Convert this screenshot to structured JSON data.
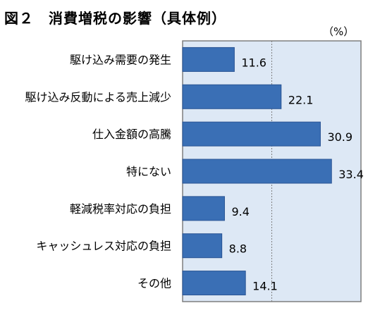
{
  "title": "図２　消費増税の影響（具体例）",
  "unit": "（%）",
  "colors": {
    "bar": "#3a6fb5",
    "bar_edge": "#2a5494",
    "plot_bg": "#dde8f5",
    "plot_border": "#7f7f7f",
    "gridline": "#7f7f7f"
  },
  "chart_data": {
    "type": "bar",
    "orientation": "horizontal",
    "categories": [
      "駆け込み需要の発生",
      "駆け込み反動による売上減少",
      "仕入金額の高騰",
      "特にない",
      "軽減税率対応の負担",
      "キャッシュレス対応の負担",
      "その他"
    ],
    "values": [
      11.6,
      22.1,
      30.9,
      33.4,
      9.4,
      8.8,
      14.1
    ],
    "xlim": [
      0,
      40
    ],
    "gridline_at": 20,
    "data_labels": true
  }
}
